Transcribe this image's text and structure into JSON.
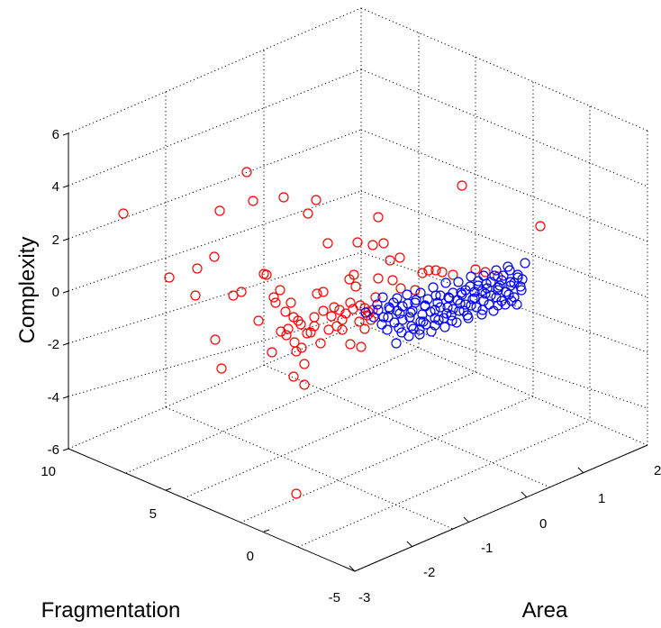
{
  "chart_data": {
    "type": "scatter",
    "title": "",
    "xlabel": "Area",
    "ylabel": "Fragmentation",
    "zlabel": "Complexity",
    "xlim": [
      -3,
      2
    ],
    "ylim": [
      -5,
      10
    ],
    "zlim": [
      -6,
      6
    ],
    "xticks": [
      "-3",
      "-2",
      "-1",
      "0",
      "1",
      "2"
    ],
    "yticks": [
      "-5",
      "0",
      "5",
      "10"
    ],
    "zticks": [
      "-6",
      "-4",
      "-2",
      "0",
      "2",
      "4",
      "6"
    ],
    "grid": true,
    "series": [
      {
        "color": "#ff0000",
        "points": [
          [
            137,
            237
          ],
          [
            274,
            191
          ],
          [
            244,
            234
          ],
          [
            281,
            223
          ],
          [
            315,
            219
          ],
          [
            351,
            222
          ],
          [
            342,
            237
          ],
          [
            219,
            298
          ],
          [
            238,
            285
          ],
          [
            188,
            308
          ],
          [
            217,
            328
          ],
          [
            259,
            328
          ],
          [
            268,
            324
          ],
          [
            293,
            304
          ],
          [
            296,
            305
          ],
          [
            239,
            377
          ],
          [
            246,
            409
          ],
          [
            287,
            356
          ],
          [
            302,
            391
          ],
          [
            304,
            330
          ],
          [
            311,
            322
          ],
          [
            323,
            336
          ],
          [
            317,
            346
          ],
          [
            306,
            336
          ],
          [
            331,
            356
          ],
          [
            320,
            365
          ],
          [
            318,
            372
          ],
          [
            327,
            380
          ],
          [
            335,
            386
          ],
          [
            329,
            390
          ],
          [
            338,
            404
          ],
          [
            326,
            418
          ],
          [
            338,
            427
          ],
          [
            356,
            381
          ],
          [
            352,
            326
          ],
          [
            359,
            324
          ],
          [
            365,
            366
          ],
          [
            371,
            341
          ],
          [
            377,
            344
          ],
          [
            384,
            348
          ],
          [
            389,
            336
          ],
          [
            392,
            343
          ],
          [
            399,
            357
          ],
          [
            389,
            382
          ],
          [
            401,
            385
          ],
          [
            405,
            342
          ],
          [
            409,
            346
          ],
          [
            412,
            355
          ],
          [
            414,
            344
          ],
          [
            417,
            330
          ],
          [
            364,
            270
          ],
          [
            397,
            269
          ],
          [
            414,
            272
          ],
          [
            426,
            270
          ],
          [
            420,
            241
          ],
          [
            388,
            310
          ],
          [
            393,
            305
          ],
          [
            395,
            318
          ],
          [
            420,
            309
          ],
          [
            436,
            311
          ],
          [
            433,
            289
          ],
          [
            444,
            286
          ],
          [
            445,
            320
          ],
          [
            461,
            322
          ],
          [
            469,
            303
          ],
          [
            476,
            300
          ],
          [
            484,
            300
          ],
          [
            491,
            302
          ],
          [
            503,
            305
          ],
          [
            528,
            299
          ],
          [
            539,
            302
          ],
          [
            553,
            307
          ],
          [
            513,
            206
          ],
          [
            600,
            251
          ],
          [
            329,
            548
          ],
          [
            359,
            345
          ],
          [
            368,
            351
          ],
          [
            374,
            362
          ],
          [
            380,
            366
          ],
          [
            345,
            369
          ],
          [
            349,
            352
          ],
          [
            334,
            360
          ],
          [
            341,
            370
          ],
          [
            312,
            368
          ],
          [
            326,
            352
          ],
          [
            349,
            362
          ],
          [
            380,
            355
          ],
          [
            405,
            365
          ],
          [
            400,
            339
          ],
          [
            408,
            350
          ]
        ]
      },
      {
        "color": "#0000ff",
        "points": [
          [
            406,
            347
          ],
          [
            415,
            352
          ],
          [
            420,
            344
          ],
          [
            426,
            352
          ],
          [
            432,
            341
          ],
          [
            438,
            358
          ],
          [
            441,
            345
          ],
          [
            447,
            355
          ],
          [
            453,
            337
          ],
          [
            456,
            347
          ],
          [
            462,
            333
          ],
          [
            467,
            357
          ],
          [
            472,
            339
          ],
          [
            478,
            346
          ],
          [
            484,
            328
          ],
          [
            489,
            341
          ],
          [
            493,
            353
          ],
          [
            498,
            330
          ],
          [
            503,
            343
          ],
          [
            508,
            333
          ],
          [
            512,
            325
          ],
          [
            517,
            338
          ],
          [
            522,
            318
          ],
          [
            527,
            331
          ],
          [
            531,
            312
          ],
          [
            535,
            323
          ],
          [
            540,
            315
          ],
          [
            545,
            328
          ],
          [
            549,
            306
          ],
          [
            553,
            319
          ],
          [
            557,
            311
          ],
          [
            562,
            324
          ],
          [
            566,
            300
          ],
          [
            571,
            314
          ],
          [
            575,
            305
          ],
          [
            579,
            322
          ],
          [
            583,
            292
          ],
          [
            574,
            338
          ],
          [
            561,
            338
          ],
          [
            548,
            345
          ],
          [
            535,
            349
          ],
          [
            520,
            353
          ],
          [
            507,
            358
          ],
          [
            494,
            363
          ],
          [
            479,
            368
          ],
          [
            466,
            371
          ],
          [
            454,
            373
          ],
          [
            440,
            381
          ],
          [
            430,
            366
          ],
          [
            443,
            364
          ],
          [
            457,
            362
          ],
          [
            470,
            357
          ],
          [
            483,
            353
          ],
          [
            496,
            348
          ],
          [
            510,
            345
          ],
          [
            523,
            339
          ],
          [
            537,
            334
          ],
          [
            551,
            330
          ],
          [
            565,
            327
          ],
          [
            578,
            318
          ],
          [
            580,
            310
          ],
          [
            567,
            313
          ],
          [
            555,
            317
          ],
          [
            541,
            320
          ],
          [
            527,
            324
          ],
          [
            513,
            327
          ],
          [
            499,
            331
          ],
          [
            486,
            336
          ],
          [
            472,
            340
          ],
          [
            458,
            345
          ],
          [
            444,
            348
          ],
          [
            431,
            352
          ],
          [
            424,
            360
          ],
          [
            437,
            336
          ],
          [
            452,
            327
          ],
          [
            467,
            325
          ],
          [
            481,
            319
          ],
          [
            495,
            314
          ],
          [
            509,
            313
          ],
          [
            523,
            307
          ],
          [
            537,
            306
          ],
          [
            551,
            300
          ],
          [
            564,
            296
          ],
          [
            575,
            308
          ],
          [
            559,
            306
          ],
          [
            545,
            313
          ],
          [
            531,
            317
          ],
          [
            517,
            322
          ],
          [
            503,
            325
          ],
          [
            489,
            328
          ],
          [
            475,
            332
          ],
          [
            461,
            336
          ],
          [
            447,
            340
          ],
          [
            433,
            343
          ],
          [
            419,
            338
          ],
          [
            425,
            330
          ],
          [
            441,
            331
          ],
          [
            455,
            352
          ],
          [
            469,
            349
          ],
          [
            483,
            344
          ],
          [
            497,
            341
          ],
          [
            511,
            337
          ],
          [
            525,
            332
          ],
          [
            539,
            326
          ],
          [
            553,
            322
          ],
          [
            567,
            317
          ],
          [
            571,
            330
          ],
          [
            557,
            334
          ],
          [
            543,
            338
          ],
          [
            529,
            341
          ],
          [
            515,
            345
          ],
          [
            501,
            350
          ],
          [
            487,
            355
          ],
          [
            473,
            360
          ],
          [
            459,
            365
          ],
          [
            446,
            369
          ],
          [
            466,
            366
          ],
          [
            483,
            361
          ],
          [
            502,
            356
          ],
          [
            519,
            350
          ],
          [
            536,
            344
          ],
          [
            553,
            339
          ],
          [
            568,
            334
          ]
        ]
      }
    ]
  }
}
